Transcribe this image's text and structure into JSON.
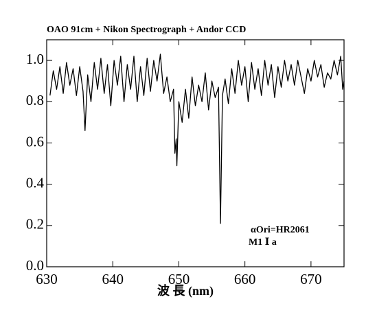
{
  "chart_data": {
    "type": "line",
    "title": "OAO 91cm + Nikon Spectrograph + Andor CCD",
    "x_label": "波 長 (nm)",
    "annotations": [
      "αOri=HR2061",
      "M1 Ⅰ a"
    ],
    "color": "#000000",
    "xlim": [
      630,
      675
    ],
    "xticks": [
      630,
      640,
      650,
      660,
      670
    ],
    "ylim": [
      0,
      1.1
    ],
    "yticks": [
      {
        "value": 0,
        "label": "0.0"
      },
      0.2,
      0.4,
      0.6,
      0.8,
      {
        "value": 1,
        "label": "1.0"
      }
    ],
    "x": [
      630.5,
      631,
      631.5,
      632,
      632.5,
      633,
      633.5,
      634,
      634.5,
      635,
      635.5,
      635.8,
      636.2,
      636.7,
      637.2,
      637.7,
      638.2,
      638.7,
      639.2,
      639.7,
      640.2,
      640.7,
      641.2,
      641.7,
      642.2,
      642.7,
      643.2,
      643.7,
      644.2,
      644.7,
      645.2,
      645.7,
      646.2,
      646.7,
      647.2,
      647.7,
      648.2,
      648.7,
      649.2,
      649.4,
      649.6,
      649.7,
      650.0,
      650.5,
      651.0,
      651.5,
      652.0,
      652.5,
      653.0,
      653.5,
      654.0,
      654.5,
      655.0,
      655.5,
      656.0,
      656.3,
      656.6,
      657.0,
      657.5,
      658.0,
      658.5,
      659.0,
      659.5,
      660.0,
      660.5,
      661.0,
      661.5,
      662.0,
      662.5,
      663.0,
      663.5,
      664.0,
      664.5,
      665.0,
      665.5,
      666.0,
      666.5,
      667.0,
      667.5,
      668.0,
      668.5,
      669.0,
      669.5,
      670.0,
      670.5,
      671.0,
      671.5,
      672.0,
      672.5,
      673.0,
      673.5,
      674.0,
      674.5,
      674.8,
      675.0
    ],
    "values": [
      0.83,
      0.95,
      0.86,
      0.97,
      0.84,
      0.99,
      0.88,
      0.96,
      0.83,
      0.97,
      0.85,
      0.66,
      0.93,
      0.8,
      0.99,
      0.86,
      1.01,
      0.84,
      0.98,
      0.78,
      1.0,
      0.88,
      1.02,
      0.8,
      0.98,
      0.86,
      1.02,
      0.8,
      0.97,
      0.83,
      1.01,
      0.85,
      1.0,
      0.9,
      1.03,
      0.84,
      0.92,
      0.8,
      0.86,
      0.55,
      0.62,
      0.49,
      0.8,
      0.7,
      0.86,
      0.72,
      0.92,
      0.78,
      0.88,
      0.8,
      0.94,
      0.76,
      0.9,
      0.82,
      0.87,
      0.21,
      0.83,
      0.91,
      0.79,
      0.96,
      0.84,
      1.0,
      0.88,
      0.97,
      0.8,
      0.99,
      0.86,
      0.96,
      0.83,
      1.0,
      0.88,
      0.98,
      0.82,
      0.97,
      0.87,
      1.0,
      0.9,
      0.98,
      0.88,
      1.0,
      0.92,
      0.84,
      0.96,
      0.9,
      1.0,
      0.92,
      0.98,
      0.87,
      0.94,
      0.91,
      1.0,
      0.93,
      1.02,
      0.86,
      0.9
    ]
  }
}
